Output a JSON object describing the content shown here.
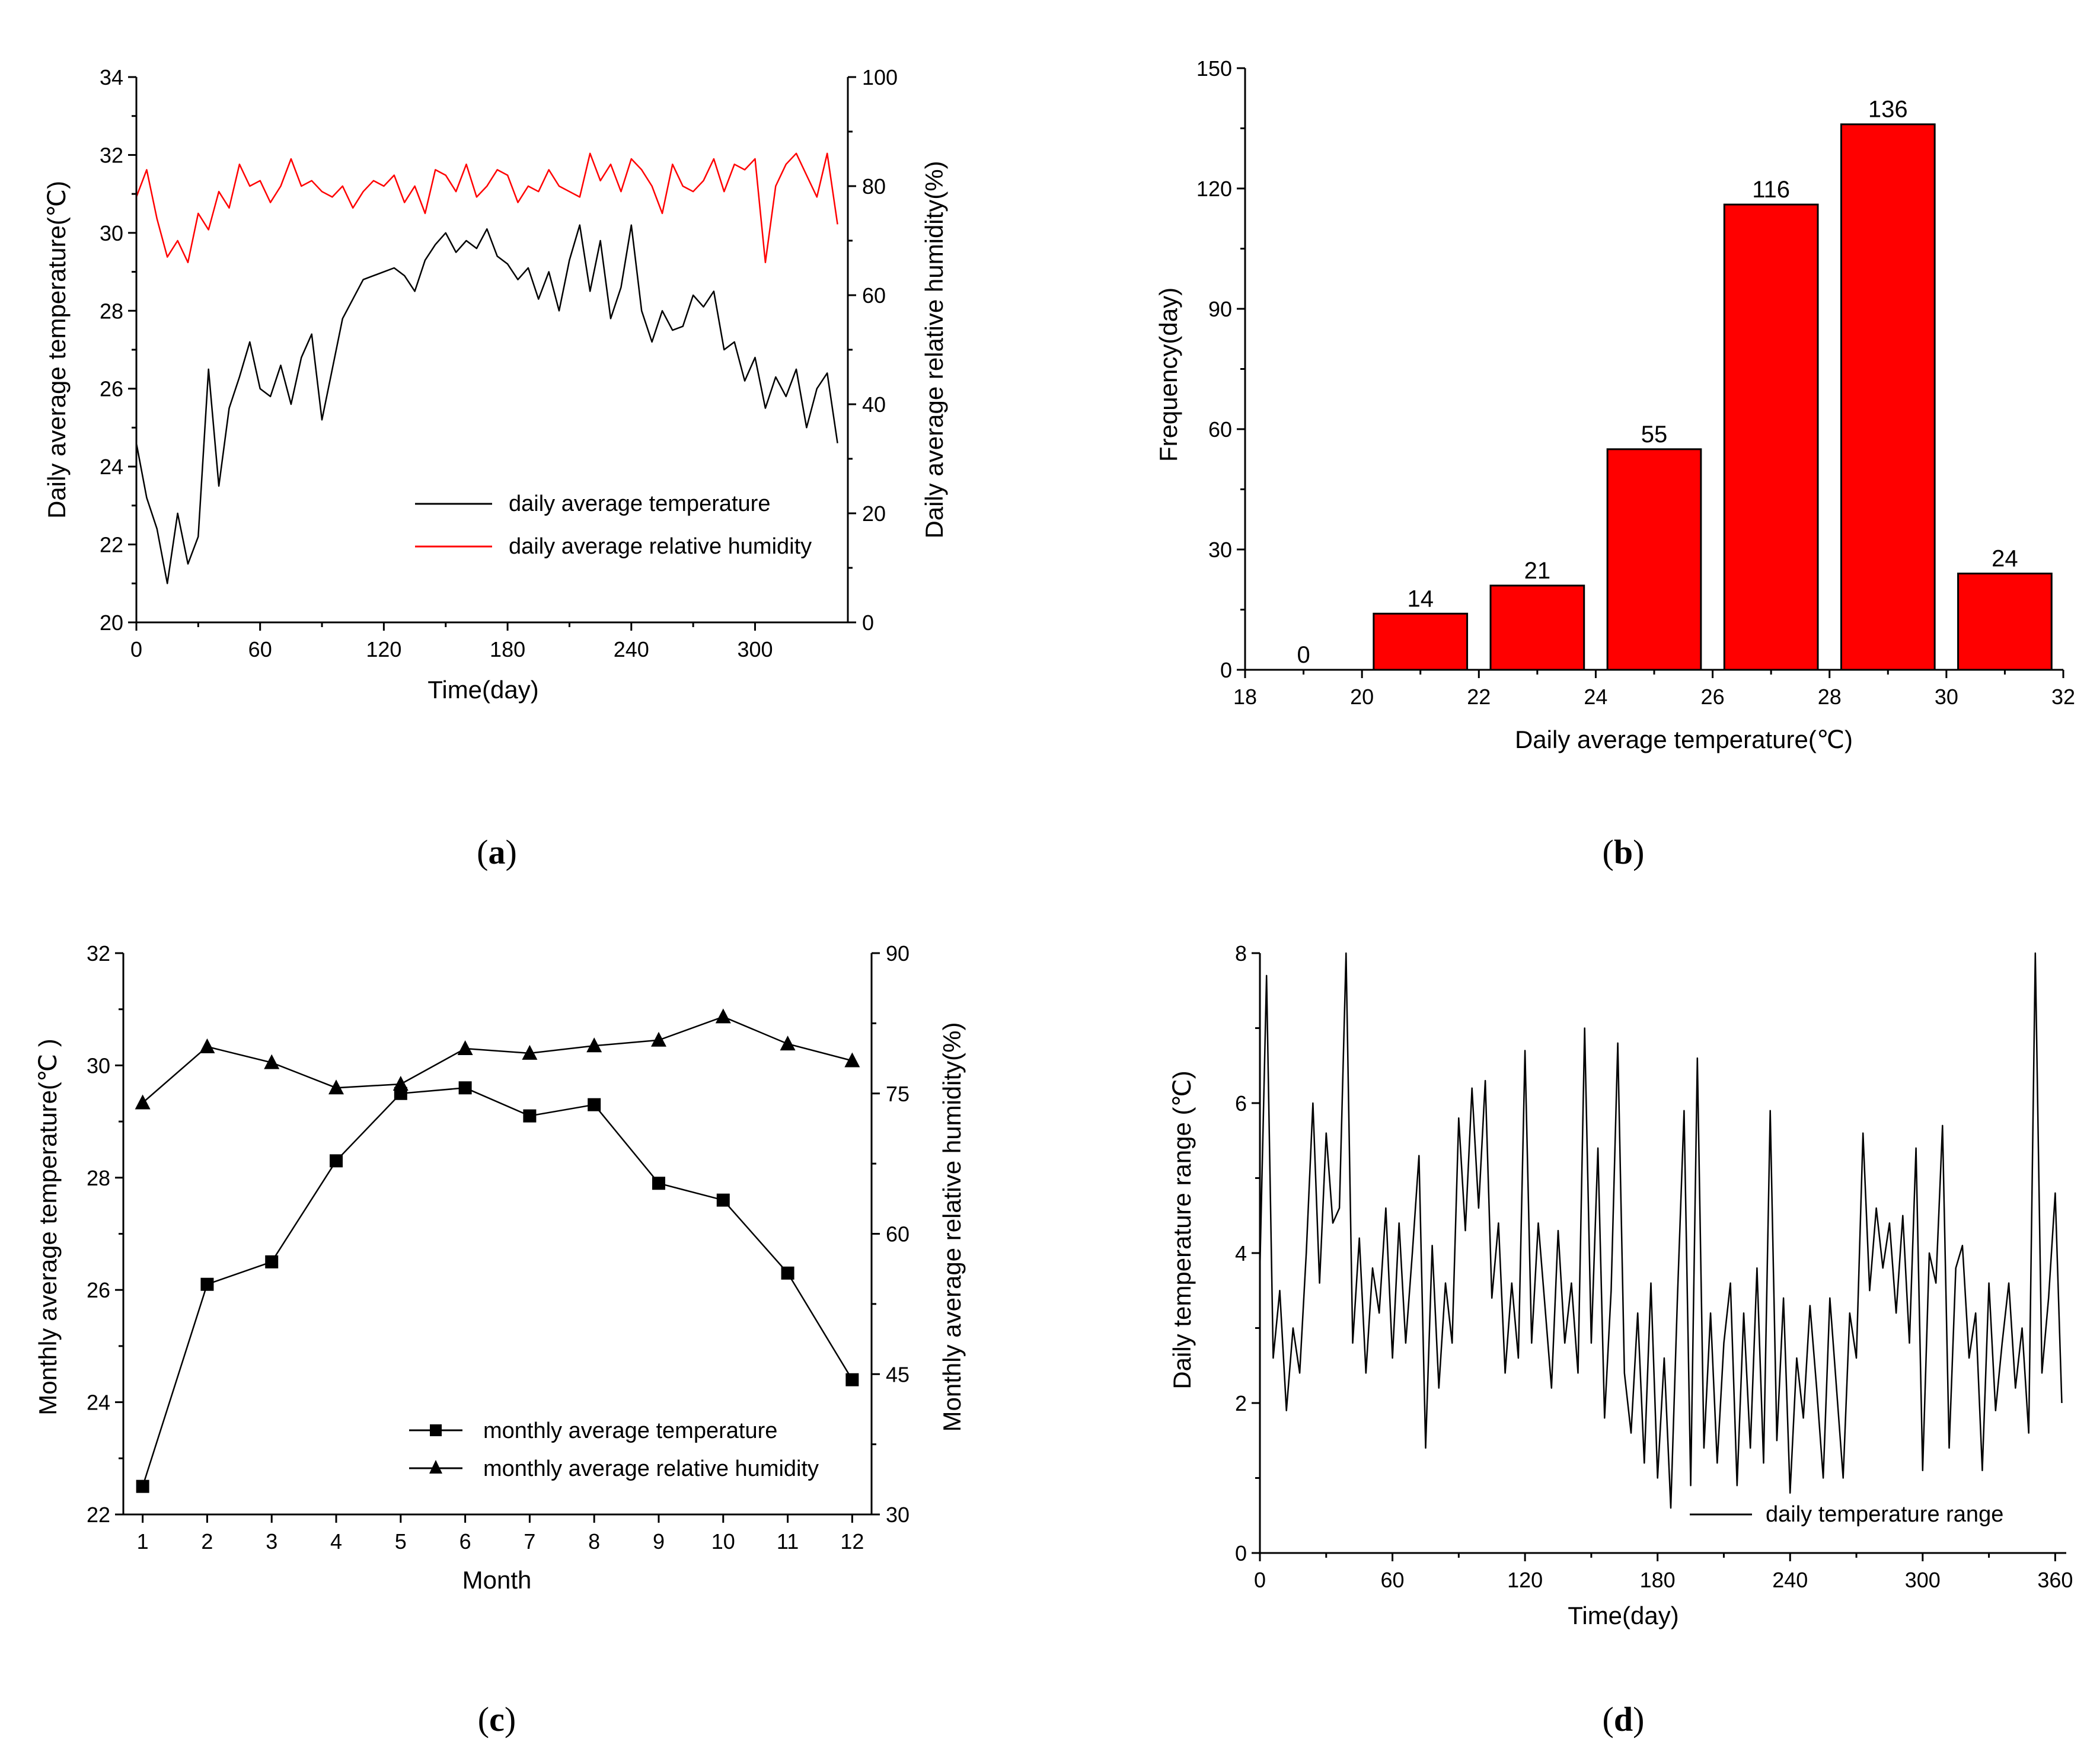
{
  "panel_labels": {
    "a": {
      "open": "(",
      "letter": "a",
      "close": ")"
    },
    "b": {
      "open": "(",
      "letter": "b",
      "close": ")"
    },
    "c": {
      "open": "(",
      "letter": "c",
      "close": ")"
    },
    "d": {
      "open": "(",
      "letter": "d",
      "close": ")"
    }
  },
  "chart_data": [
    {
      "id": "a",
      "type": "line",
      "xlabel": "Time(day)",
      "ylabel": "Daily average temperature(℃)",
      "y2label": "Daily average relative humidity(%)",
      "xlim": [
        0,
        345
      ],
      "ylim": [
        20,
        34
      ],
      "y2lim": [
        0,
        100
      ],
      "xticks": [
        0,
        60,
        120,
        180,
        240,
        300
      ],
      "yticks": [
        20,
        22,
        24,
        26,
        28,
        30,
        32,
        34
      ],
      "y2ticks": [
        0,
        20,
        40,
        60,
        80,
        100
      ],
      "legend_position": "bottom-right",
      "series": [
        {
          "name": "daily average temperature",
          "axis": "left",
          "color": "#000000",
          "x": [
            0,
            5,
            10,
            15,
            20,
            25,
            30,
            35,
            40,
            45,
            50,
            55,
            60,
            65,
            70,
            75,
            80,
            85,
            90,
            95,
            100,
            105,
            110,
            115,
            120,
            125,
            130,
            135,
            140,
            145,
            150,
            155,
            160,
            165,
            170,
            175,
            180,
            185,
            190,
            195,
            200,
            205,
            210,
            215,
            220,
            225,
            230,
            235,
            240,
            245,
            250,
            255,
            260,
            265,
            270,
            275,
            280,
            285,
            290,
            295,
            300,
            305,
            310,
            315,
            320,
            325,
            330,
            335,
            340
          ],
          "values": [
            24.6,
            23.2,
            22.4,
            21.0,
            22.8,
            21.5,
            22.2,
            26.5,
            23.5,
            25.5,
            26.3,
            27.2,
            26.0,
            25.8,
            26.6,
            25.6,
            26.8,
            27.4,
            25.2,
            26.5,
            27.8,
            28.3,
            28.8,
            28.9,
            29.0,
            29.1,
            28.9,
            28.5,
            29.3,
            29.7,
            30.0,
            29.5,
            29.8,
            29.6,
            30.1,
            29.4,
            29.2,
            28.8,
            29.1,
            28.3,
            29.0,
            28.0,
            29.3,
            30.2,
            28.5,
            29.8,
            27.8,
            28.6,
            30.2,
            28.0,
            27.2,
            28.0,
            27.5,
            27.6,
            28.4,
            28.1,
            28.5,
            27.0,
            27.2,
            26.2,
            26.8,
            25.5,
            26.3,
            25.8,
            26.5,
            25.0,
            26.0,
            26.4,
            24.6
          ]
        },
        {
          "name": "daily average relative humidity",
          "axis": "right",
          "color": "#ff0000",
          "x": [
            0,
            5,
            10,
            15,
            20,
            25,
            30,
            35,
            40,
            45,
            50,
            55,
            60,
            65,
            70,
            75,
            80,
            85,
            90,
            95,
            100,
            105,
            110,
            115,
            120,
            125,
            130,
            135,
            140,
            145,
            150,
            155,
            160,
            165,
            170,
            175,
            180,
            185,
            190,
            195,
            200,
            205,
            210,
            215,
            220,
            225,
            230,
            235,
            240,
            245,
            250,
            255,
            260,
            265,
            270,
            275,
            280,
            285,
            290,
            295,
            300,
            305,
            310,
            315,
            320,
            325,
            330,
            335,
            340
          ],
          "values": [
            78,
            83,
            74,
            67,
            70,
            66,
            75,
            72,
            79,
            76,
            84,
            80,
            81,
            77,
            80,
            85,
            80,
            81,
            79,
            78,
            80,
            76,
            79,
            81,
            80,
            82,
            77,
            80,
            75,
            83,
            82,
            79,
            84,
            78,
            80,
            83,
            82,
            77,
            80,
            79,
            83,
            80,
            79,
            78,
            86,
            81,
            84,
            79,
            85,
            83,
            80,
            75,
            84,
            80,
            79,
            81,
            85,
            79,
            84,
            83,
            85,
            66,
            80,
            84,
            86,
            82,
            78,
            86,
            73
          ]
        }
      ]
    },
    {
      "id": "b",
      "type": "bar",
      "xlabel": "Daily average temperature(℃)",
      "ylabel": "Frequency(day)",
      "xlim": [
        18,
        32
      ],
      "ylim": [
        0,
        150
      ],
      "xticks": [
        18,
        20,
        22,
        24,
        26,
        28,
        30,
        32
      ],
      "yticks": [
        0,
        30,
        60,
        90,
        120,
        150
      ],
      "bin_width": 1.6,
      "bar_color": "#ff0000",
      "bins": [
        19,
        21,
        23,
        25,
        27,
        29,
        31
      ],
      "values": [
        0,
        14,
        21,
        55,
        116,
        136,
        24
      ],
      "labels": [
        "0",
        "14",
        "21",
        "55",
        "116",
        "136",
        "24"
      ]
    },
    {
      "id": "c",
      "type": "line",
      "xlabel": "Month",
      "ylabel": "Monthly average temperature(℃ )",
      "y2label": "Monthly average relative humidity(%)",
      "xlim": [
        0.7,
        12.3
      ],
      "ylim": [
        22,
        32
      ],
      "y2lim": [
        30,
        90
      ],
      "xticks": [
        1,
        2,
        3,
        4,
        5,
        6,
        7,
        8,
        9,
        10,
        11,
        12
      ],
      "yticks": [
        22,
        24,
        26,
        28,
        30,
        32
      ],
      "y2ticks": [
        30,
        45,
        60,
        75,
        90
      ],
      "legend_position": "bottom-right",
      "categories": [
        1,
        2,
        3,
        4,
        5,
        6,
        7,
        8,
        9,
        10,
        11,
        12
      ],
      "series": [
        {
          "name": "monthly average temperature",
          "axis": "left",
          "marker": "square",
          "values": [
            22.5,
            26.1,
            26.5,
            28.3,
            29.5,
            29.6,
            29.1,
            29.3,
            27.9,
            27.6,
            26.3,
            24.4
          ]
        },
        {
          "name": "monthly average relative humidity",
          "axis": "right",
          "marker": "triangle",
          "values": [
            74,
            80,
            78.3,
            75.6,
            76,
            79.8,
            79.3,
            80.1,
            80.7,
            83.2,
            80.3,
            78.5
          ]
        }
      ]
    },
    {
      "id": "d",
      "type": "line",
      "xlabel": "Time(day)",
      "ylabel": "Daily temperature range (℃)",
      "xlim": [
        0,
        365
      ],
      "ylim": [
        0,
        8
      ],
      "xticks": [
        0,
        60,
        120,
        180,
        240,
        300,
        360
      ],
      "yticks": [
        0,
        2,
        4,
        6,
        8
      ],
      "legend_position": "bottom-right",
      "series": [
        {
          "name": "daily temperature range",
          "color": "#000000",
          "x": [
            0,
            3,
            6,
            9,
            12,
            15,
            18,
            21,
            24,
            27,
            30,
            33,
            36,
            39,
            42,
            45,
            48,
            51,
            54,
            57,
            60,
            63,
            66,
            69,
            72,
            75,
            78,
            81,
            84,
            87,
            90,
            93,
            96,
            99,
            102,
            105,
            108,
            111,
            114,
            117,
            120,
            123,
            126,
            129,
            132,
            135,
            138,
            141,
            144,
            147,
            150,
            153,
            156,
            159,
            162,
            165,
            168,
            171,
            174,
            177,
            180,
            183,
            186,
            189,
            192,
            195,
            198,
            201,
            204,
            207,
            210,
            213,
            216,
            219,
            222,
            225,
            228,
            231,
            234,
            237,
            240,
            243,
            246,
            249,
            252,
            255,
            258,
            261,
            264,
            267,
            270,
            273,
            276,
            279,
            282,
            285,
            288,
            291,
            294,
            297,
            300,
            303,
            306,
            309,
            312,
            315,
            318,
            321,
            324,
            327,
            330,
            333,
            336,
            339,
            342,
            345,
            348,
            351,
            354,
            357,
            360,
            363
          ],
          "values": [
            3.8,
            7.7,
            2.6,
            3.5,
            1.9,
            3.0,
            2.4,
            4.0,
            6.0,
            3.6,
            5.6,
            4.4,
            4.6,
            8.0,
            2.8,
            4.2,
            2.4,
            3.8,
            3.2,
            4.6,
            2.6,
            4.4,
            2.8,
            4.0,
            5.3,
            1.4,
            4.1,
            2.2,
            3.6,
            2.8,
            5.8,
            4.3,
            6.2,
            4.6,
            6.3,
            3.4,
            4.4,
            2.4,
            3.6,
            2.6,
            6.7,
            2.8,
            4.4,
            3.3,
            2.2,
            4.3,
            2.8,
            3.6,
            2.4,
            7.0,
            2.8,
            5.4,
            1.8,
            3.5,
            6.8,
            2.4,
            1.6,
            3.2,
            1.2,
            3.6,
            1.0,
            2.6,
            0.6,
            3.4,
            5.9,
            0.9,
            6.6,
            1.4,
            3.2,
            1.2,
            2.8,
            3.6,
            0.9,
            3.2,
            1.4,
            3.8,
            1.2,
            5.9,
            1.5,
            3.4,
            0.8,
            2.6,
            1.8,
            3.3,
            2.2,
            1.0,
            3.4,
            2.2,
            1.0,
            3.2,
            2.6,
            5.6,
            3.5,
            4.6,
            3.8,
            4.4,
            3.2,
            4.5,
            2.8,
            5.4,
            1.1,
            4.0,
            3.6,
            5.7,
            1.4,
            3.8,
            4.1,
            2.6,
            3.2,
            1.1,
            3.6,
            1.9,
            2.8,
            3.6,
            2.2,
            3.0,
            1.6,
            8.0,
            2.4,
            3.4,
            4.8,
            2.0
          ]
        }
      ]
    }
  ]
}
